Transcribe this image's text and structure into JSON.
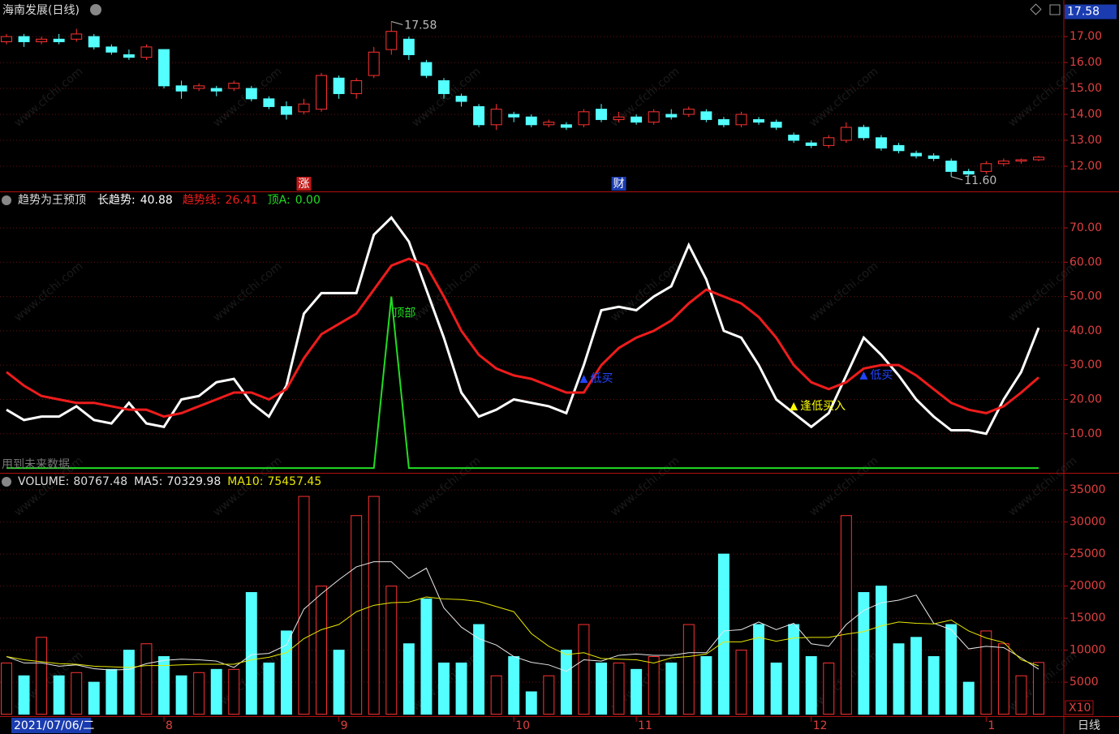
{
  "chart_data": [
    {
      "type": "candlestick",
      "title": "海南发展(日线)",
      "open": [
        16.8,
        17.0,
        16.8,
        16.9,
        16.9,
        17.0,
        16.6,
        16.3,
        16.2,
        16.5,
        15.1,
        15.0,
        15.0,
        15.0,
        15.0,
        14.6,
        14.3,
        14.1,
        14.2,
        15.4,
        14.8,
        15.5,
        16.5,
        16.9,
        16.0,
        15.3,
        14.7,
        14.3,
        13.6,
        14.0,
        13.9,
        13.6,
        13.6,
        13.6,
        14.2,
        13.8,
        13.9,
        13.7,
        14.0,
        14.0,
        14.1,
        13.8,
        13.6,
        13.8,
        13.7,
        13.2,
        12.9,
        12.8,
        13.0,
        13.5,
        13.1,
        12.8,
        12.5,
        12.4,
        12.2,
        11.8,
        11.8,
        12.1,
        12.2,
        12.25
      ],
      "high": [
        17.1,
        17.1,
        17.0,
        17.1,
        17.3,
        17.1,
        16.7,
        16.5,
        16.7,
        16.5,
        15.3,
        15.2,
        15.1,
        15.3,
        15.1,
        14.7,
        14.5,
        14.6,
        15.6,
        15.5,
        15.4,
        16.6,
        17.58,
        17.0,
        16.1,
        15.4,
        14.8,
        14.4,
        14.4,
        14.1,
        14.0,
        13.8,
        13.7,
        14.2,
        14.4,
        14.1,
        14.0,
        14.2,
        14.2,
        14.3,
        14.2,
        13.9,
        14.1,
        13.9,
        13.8,
        13.3,
        13.0,
        13.2,
        13.7,
        13.6,
        13.2,
        12.9,
        12.6,
        12.5,
        12.3,
        11.9,
        12.2,
        12.3,
        12.3,
        12.4
      ],
      "low": [
        16.7,
        16.6,
        16.7,
        16.7,
        16.8,
        16.5,
        16.3,
        16.1,
        16.1,
        15.0,
        14.6,
        14.9,
        14.7,
        14.9,
        14.5,
        14.2,
        13.8,
        14.0,
        14.1,
        14.6,
        14.6,
        15.4,
        16.3,
        16.1,
        15.4,
        14.6,
        14.3,
        13.5,
        13.4,
        13.7,
        13.5,
        13.5,
        13.4,
        13.5,
        13.7,
        13.7,
        13.6,
        13.6,
        13.8,
        13.9,
        13.7,
        13.5,
        13.5,
        13.6,
        13.4,
        12.9,
        12.7,
        12.7,
        12.9,
        13.0,
        12.6,
        12.5,
        12.3,
        12.2,
        11.6,
        11.6,
        11.7,
        12.0,
        12.1,
        12.2
      ],
      "close": [
        17.0,
        16.8,
        16.9,
        16.8,
        17.1,
        16.6,
        16.4,
        16.2,
        16.6,
        15.1,
        14.9,
        15.1,
        14.9,
        15.2,
        14.6,
        14.3,
        14.0,
        14.4,
        15.5,
        14.8,
        15.3,
        16.4,
        17.2,
        16.3,
        15.5,
        14.8,
        14.5,
        13.6,
        14.2,
        13.9,
        13.6,
        13.7,
        13.5,
        14.1,
        13.8,
        13.9,
        13.7,
        14.1,
        13.9,
        14.2,
        13.8,
        13.6,
        14.0,
        13.7,
        13.5,
        13.0,
        12.8,
        13.1,
        13.5,
        13.1,
        12.7,
        12.6,
        12.4,
        12.3,
        11.8,
        11.7,
        12.1,
        12.2,
        12.25,
        12.35
      ],
      "up_color": "#ff3232",
      "down_color": "#54ffff",
      "ylim": [
        11.03,
        18.41
      ],
      "yticks": [
        {
          "value": 12,
          "label": "12.00"
        },
        {
          "value": 13,
          "label": "13.00"
        },
        {
          "value": 14,
          "label": "14.00"
        },
        {
          "value": 15,
          "label": "15.00"
        },
        {
          "value": 16,
          "label": "16.00"
        },
        {
          "value": 17,
          "label": "17.00"
        }
      ],
      "grid": true,
      "current_price": {
        "value": 17.58,
        "label": "17.58"
      },
      "annotations": [
        {
          "index": 22,
          "value": 17.58,
          "label": "17.58"
        },
        {
          "index": 54,
          "value": 11.6,
          "label": "11.60"
        }
      ],
      "markers": [
        {
          "index": 17,
          "text": "涨",
          "color": "#c01818"
        },
        {
          "index": 35,
          "text": "财",
          "color": "#1a3cb0"
        }
      ],
      "watermark": "www.cfchi.com"
    },
    {
      "type": "line",
      "title": "趋势为王预顶",
      "series": [
        {
          "name": "长趋势:",
          "color": "#ffffff",
          "legend_value": "40.88",
          "values": [
            17,
            14,
            15,
            15,
            18,
            14,
            13,
            19,
            13,
            12,
            20,
            21,
            25,
            26,
            19,
            15,
            24,
            45,
            51,
            51,
            51,
            68,
            73,
            66,
            52,
            38,
            22,
            15,
            17,
            20,
            19,
            18,
            16,
            30,
            46,
            47,
            46,
            50,
            53,
            65,
            55,
            40,
            38,
            30,
            20,
            16,
            12,
            16,
            27,
            38,
            33,
            27,
            20,
            15,
            11,
            11,
            10,
            20,
            28,
            40.88
          ]
        },
        {
          "name": "趋势线:",
          "color": "#ee1c1c",
          "legend_value": "26.41",
          "values": [
            28,
            24,
            21,
            20,
            19,
            19,
            18,
            17,
            17,
            15,
            16,
            18,
            20,
            22,
            22,
            20,
            23,
            32,
            39,
            42,
            45,
            52,
            59,
            61,
            59,
            50,
            40,
            33,
            29,
            27,
            26,
            24,
            22,
            22,
            30,
            35,
            38,
            40,
            43,
            48,
            52,
            50,
            48,
            44,
            38,
            30,
            25,
            23,
            25,
            29,
            30,
            30,
            27,
            23,
            19,
            17,
            16,
            18,
            22,
            26.41
          ]
        },
        {
          "name": "顶A:",
          "color": "#22dd22",
          "legend_value": "0.00",
          "values": [
            0,
            0,
            0,
            0,
            0,
            0,
            0,
            0,
            0,
            0,
            0,
            0,
            0,
            0,
            0,
            0,
            0,
            0,
            0,
            0,
            0,
            0,
            50,
            0,
            0,
            0,
            0,
            0,
            0,
            0,
            0,
            0,
            0,
            0,
            0,
            0,
            0,
            0,
            0,
            0,
            0,
            0,
            0,
            0,
            0,
            0,
            0,
            0,
            0,
            0,
            0,
            0,
            0,
            0,
            0,
            0,
            0,
            0,
            0,
            0
          ]
        }
      ],
      "ylim": [
        -1.4,
        80.4
      ],
      "yticks": [
        {
          "value": 10,
          "label": "10.00"
        },
        {
          "value": 20,
          "label": "20.00"
        },
        {
          "value": 30,
          "label": "30.00"
        },
        {
          "value": 40,
          "label": "40.00"
        },
        {
          "value": 50,
          "label": "50.00"
        },
        {
          "value": 60,
          "label": "60.00"
        },
        {
          "value": 70,
          "label": "70.00"
        }
      ],
      "grid": true,
      "annotations": [
        {
          "index": 22,
          "value": 45,
          "text": "顶部",
          "color": "#22dd22",
          "triangle": false
        },
        {
          "index": 33,
          "value": 26,
          "text": "低买",
          "color": "#2244ff",
          "triangle": true
        },
        {
          "index": 45,
          "value": 18,
          "text": "逢低买入",
          "color": "#ffff00",
          "triangle": true
        },
        {
          "index": 49,
          "value": 27,
          "text": "低买",
          "color": "#2244ff",
          "triangle": true
        }
      ],
      "note": "用到未来数据"
    },
    {
      "type": "bar",
      "series": [
        {
          "name": "VOLUME:",
          "kind": "bar",
          "legend_value": "80767.48",
          "color": "#dddddd",
          "values": [
            8000,
            6000,
            12000,
            6000,
            6500,
            5000,
            7000,
            10000,
            11000,
            9000,
            6000,
            6500,
            7000,
            7000,
            19000,
            8000,
            13000,
            34000,
            20000,
            10000,
            31000,
            34000,
            20000,
            11000,
            18000,
            8000,
            8000,
            14000,
            6000,
            9000,
            3500,
            6000,
            10000,
            14000,
            8000,
            8000,
            7000,
            9000,
            8000,
            14000,
            9000,
            25000,
            10000,
            14000,
            8000,
            14000,
            9000,
            8000,
            31000,
            19000,
            20000,
            11000,
            12000,
            9000,
            14000,
            5000,
            13000,
            11000,
            6000,
            8076.748
          ]
        },
        {
          "name": "MA5:",
          "kind": "line",
          "legend_value": "70329.98",
          "color": "#e8e8e8",
          "values": [
            9000,
            8000,
            8000,
            7500,
            7700,
            7100,
            6900,
            7000,
            7900,
            8400,
            8600,
            8500,
            8300,
            7300,
            9300,
            9500,
            10800,
            16400,
            18800,
            21000,
            23000,
            23800,
            23800,
            21200,
            22800,
            16600,
            13600,
            11800,
            10800,
            9000,
            8100,
            7700,
            6700,
            8500,
            8300,
            9200,
            9400,
            9200,
            9200,
            9600,
            9600,
            13000,
            13200,
            14400,
            13200,
            14200,
            11000,
            10600,
            14000,
            16200,
            17400,
            17800,
            18600,
            14200,
            13200,
            10200,
            10600,
            10400,
            8800,
            7032.998
          ]
        },
        {
          "name": "MA10:",
          "kind": "line",
          "legend_value": "75457.45",
          "color": "#e8e800",
          "values": [
            9000,
            8500,
            8200,
            7900,
            7800,
            7500,
            7400,
            7300,
            7600,
            7600,
            7700,
            7800,
            7800,
            7800,
            8500,
            8900,
            9600,
            11800,
            13200,
            14000,
            16000,
            17000,
            17400,
            17500,
            18300,
            18000,
            17900,
            17600,
            16800,
            16000,
            12600,
            10600,
            9300,
            9600,
            8700,
            8600,
            8500,
            8000,
            8800,
            9000,
            9400,
            11300,
            11300,
            12000,
            11400,
            11900,
            12000,
            12000,
            12500,
            12900,
            13800,
            14400,
            14200,
            14100,
            14700,
            13000,
            11900,
            11200,
            8500,
            7545.745
          ]
        }
      ],
      "ylim": [
        -300,
        37550
      ],
      "yticks": [
        5000,
        10000,
        15000,
        20000,
        25000,
        30000,
        35000
      ],
      "grid": true,
      "unit_label": "X10",
      "date_label": "2021/07/06/二",
      "month_ticks": [
        {
          "index": 9,
          "label": "8"
        },
        {
          "index": 19,
          "label": "9"
        },
        {
          "index": 29,
          "label": "10"
        },
        {
          "index": 36,
          "label": "11"
        },
        {
          "index": 46,
          "label": "12"
        },
        {
          "index": 56,
          "label": "1"
        }
      ],
      "period": "日线"
    }
  ]
}
